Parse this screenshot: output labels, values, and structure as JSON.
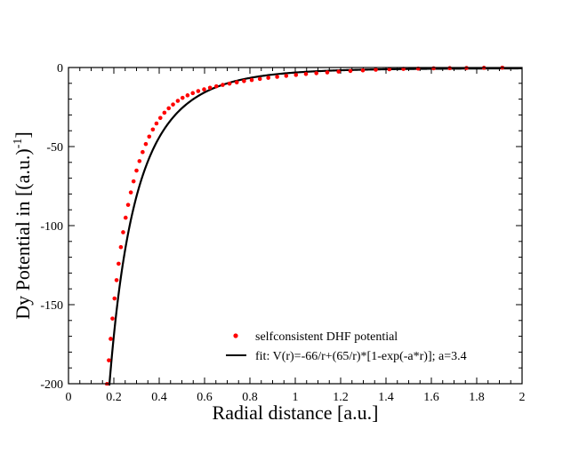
{
  "chart_data": {
    "type": "line",
    "xlabel": "Radial distance [a.u.]",
    "ylabel": {
      "main": "Dy Potential in [(a.u.)",
      "superscript": "-1",
      "suffix": "]"
    },
    "xlim": [
      0,
      2
    ],
    "ylim": [
      -200,
      0
    ],
    "x_ticks": [
      "0",
      "0.2",
      "0.4",
      "0.6",
      "0.8",
      "1",
      "1.2",
      "1.4",
      "1.6",
      "1.8",
      "2"
    ],
    "y_ticks": [
      "0",
      "-50",
      "-100",
      "-150",
      "-200"
    ],
    "grid": false,
    "legend_placement": "bottom-right",
    "series": [
      {
        "name": "selfconsistent DHF potential",
        "style": "dots",
        "color": "#ff0000",
        "x": [
          0.17,
          0.178,
          0.186,
          0.194,
          0.203,
          0.212,
          0.221,
          0.231,
          0.241,
          0.252,
          0.263,
          0.275,
          0.287,
          0.3,
          0.313,
          0.327,
          0.341,
          0.356,
          0.372,
          0.388,
          0.405,
          0.423,
          0.442,
          0.461,
          0.482,
          0.503,
          0.525,
          0.548,
          0.572,
          0.598,
          0.624,
          0.652,
          0.68,
          0.71,
          0.742,
          0.774,
          0.808,
          0.844,
          0.881,
          0.92,
          0.96,
          1.003,
          1.047,
          1.093,
          1.141,
          1.191,
          1.243,
          1.298,
          1.355,
          1.415,
          1.477,
          1.542,
          1.61,
          1.681,
          1.755,
          1.832,
          1.913
        ],
        "y": [
          -200.2,
          -185.2,
          -171.6,
          -158.8,
          -146.1,
          -134.5,
          -124.1,
          -113.6,
          -104.2,
          -95.0,
          -86.9,
          -79.0,
          -72.0,
          -65.2,
          -59.2,
          -53.5,
          -48.4,
          -43.7,
          -39.2,
          -35.4,
          -31.9,
          -28.6,
          -25.8,
          -23.4,
          -21.1,
          -19.2,
          -17.6,
          -16.2,
          -14.9,
          -13.8,
          -12.8,
          -11.9,
          -11.0,
          -10.2,
          -9.4,
          -8.6,
          -7.9,
          -7.2,
          -6.5,
          -5.9,
          -5.3,
          -4.7,
          -4.1,
          -3.6,
          -3.1,
          -2.6,
          -2.2,
          -1.8,
          -1.4,
          -1.1,
          -0.9,
          -0.7,
          -0.5,
          -0.4,
          -0.3,
          -0.2,
          -0.1
        ]
      },
      {
        "name": "fit: V(r)=-66/r+(65/r)*[1-exp(-a*r)]; a=3.4",
        "style": "line",
        "color": "#000000",
        "formula": {
          "A": 66,
          "B": 65,
          "a": 3.4
        },
        "x_range": [
          0.17,
          2.0
        ]
      }
    ]
  }
}
